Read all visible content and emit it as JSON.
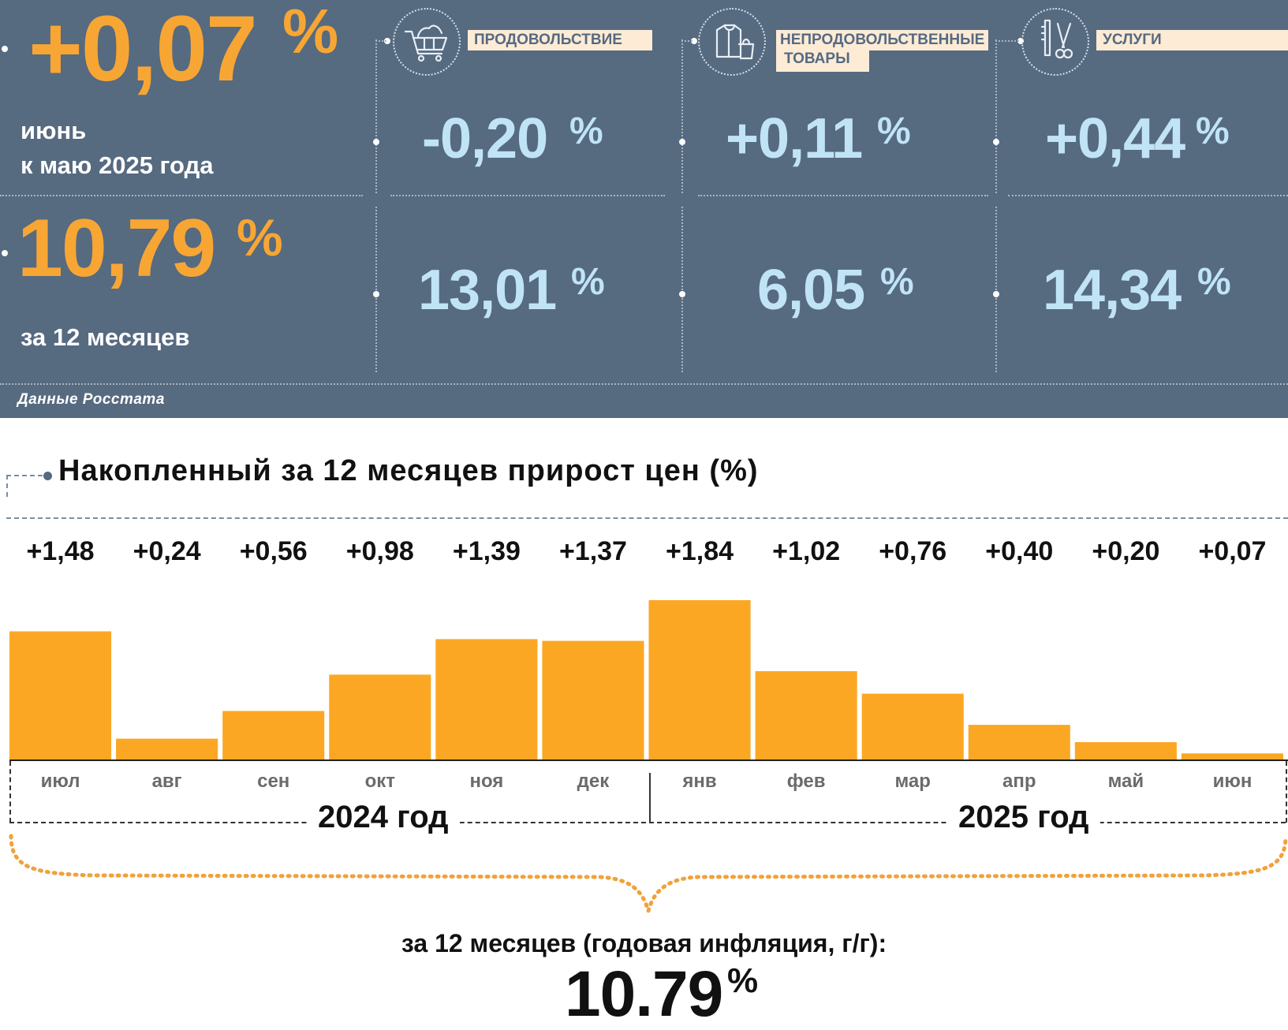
{
  "header": {
    "main_monthly_value": "+0,07",
    "percent_sign": "%",
    "main_monthly_caption_line1": "июнь",
    "main_monthly_caption_line2": "к маю 2025 года",
    "main_annual_value": "10,79",
    "main_annual_caption": "за 12 месяцев",
    "source": "Данные Росстата"
  },
  "categories": [
    {
      "label": "ПРОДОВОЛЬСТВИЕ",
      "icon": "shopping-cart-icon",
      "monthly": "-0,20",
      "annual": "13,01"
    },
    {
      "label_line1": "НЕПРОДОВОЛЬСТВЕННЫЕ",
      "label_line2": "ТОВАРЫ",
      "icon": "clothes-bag-icon",
      "monthly": "+0,11",
      "annual": "6,05"
    },
    {
      "label": "УСЛУГИ",
      "icon": "comb-scissors-icon",
      "monthly": "+0,44",
      "annual": "14,34"
    }
  ],
  "colors": {
    "panel": "#566a80",
    "orange": "#f7a634",
    "light_blue": "#c0e4f6",
    "label_bg": "#fdebd6",
    "bar": "#fca723"
  },
  "chart_data": {
    "type": "bar",
    "title": "Накопленный за 12 месяцев прирост цен (%)",
    "categories": [
      "июл",
      "авг",
      "сен",
      "окт",
      "ноя",
      "дек",
      "янв",
      "фев",
      "мар",
      "апр",
      "май",
      "июн"
    ],
    "values": [
      1.48,
      0.24,
      0.56,
      0.98,
      1.39,
      1.37,
      1.84,
      1.02,
      0.76,
      0.4,
      0.2,
      0.07
    ],
    "value_labels": [
      "+1,48",
      "+0,24",
      "+0,56",
      "+0,98",
      "+1,39",
      "+1,37",
      "+1,84",
      "+1,02",
      "+0,76",
      "+0,40",
      "+0,20",
      "+0,07"
    ],
    "year_groups": [
      {
        "label": "2024 год",
        "months": 6
      },
      {
        "label": "2025 год",
        "months": 6
      }
    ],
    "ylim": [
      0,
      1.84
    ],
    "grid": false,
    "summary_caption": "за 12 месяцев (годовая инфляция, г/г):",
    "summary_value": "10.79",
    "summary_unit": "%"
  }
}
